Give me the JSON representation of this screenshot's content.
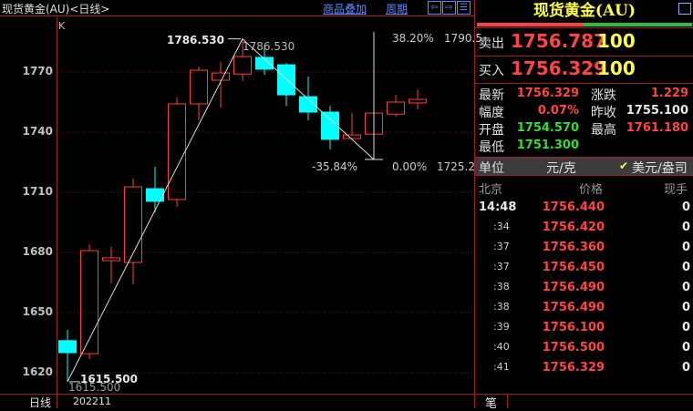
{
  "header": {
    "title": "现货黄金(AU)<日线>",
    "overlay_link": "商品叠加",
    "period_link": "周期",
    "nav_icons": [
      "arrow-left-icon",
      "arrow-right-icon",
      "layout-icon"
    ]
  },
  "chart": {
    "indicator_label": "K",
    "y_ticks": [
      1770,
      1740,
      1710,
      1680,
      1650,
      1620
    ],
    "period_label": "日线",
    "date_label": "202211",
    "high_label": "1786.530",
    "high_label2": "1786.530",
    "low_label": "1615.500",
    "low_label2": "1615.500",
    "fib": {
      "top_pct": "38.20%",
      "top_price": "1790.5",
      "zero_pct": "0.00%",
      "zero_price": "1725.2",
      "neg_pct": "-35.84%"
    },
    "colors": {
      "up": "#ff3c3c",
      "down": "#00ffff",
      "grid": "#6a1010"
    }
  },
  "chart_data": {
    "type": "candlestick",
    "ylim": [
      1612,
      1796
    ],
    "candles": [
      {
        "o": 1636,
        "c": 1630,
        "h": 1641.4,
        "l": 1615.5
      },
      {
        "o": 1629.5,
        "c": 1680.9,
        "h": 1684,
        "l": 1626.8
      },
      {
        "o": 1675.9,
        "c": 1677.3,
        "h": 1682.7,
        "l": 1664.5
      },
      {
        "o": 1675,
        "c": 1712.7,
        "h": 1717,
        "l": 1664
      },
      {
        "o": 1711.8,
        "c": 1705.5,
        "h": 1722.7,
        "l": 1700
      },
      {
        "o": 1706.4,
        "c": 1754.1,
        "h": 1757.3,
        "l": 1702.7
      },
      {
        "o": 1754.1,
        "c": 1770.9,
        "h": 1772.7,
        "l": 1745.9
      },
      {
        "o": 1765.9,
        "c": 1769.5,
        "h": 1775,
        "l": 1752.3
      },
      {
        "o": 1769,
        "c": 1777.7,
        "h": 1786.53,
        "l": 1765.5
      },
      {
        "o": 1777.3,
        "c": 1771.4,
        "h": 1783,
        "l": 1768.6
      },
      {
        "o": 1773.6,
        "c": 1758.6,
        "h": 1774.5,
        "l": 1753
      },
      {
        "o": 1757.7,
        "c": 1750,
        "h": 1767.7,
        "l": 1745.9
      },
      {
        "o": 1750,
        "c": 1736.4,
        "h": 1753,
        "l": 1731.4
      },
      {
        "o": 1736.8,
        "c": 1738.6,
        "h": 1749.5,
        "l": 1736.8
      },
      {
        "o": 1739,
        "c": 1749.5,
        "h": 1750,
        "l": 1738.5
      },
      {
        "o": 1749,
        "c": 1755,
        "h": 1758.6,
        "l": 1747.7
      },
      {
        "o": 1754.57,
        "c": 1756.329,
        "h": 1761.18,
        "l": 1751.3
      }
    ]
  },
  "panel": {
    "title": "现货黄金(AU)",
    "sell_label": "卖出",
    "sell_price": "1756.787",
    "sell_vol": "100",
    "buy_label": "买入",
    "buy_price": "1756.329",
    "buy_vol": "100",
    "stats": [
      {
        "label": "最新",
        "value": "1756.329",
        "color": "red"
      },
      {
        "label": "涨跌",
        "value": "1.229",
        "color": "red"
      },
      {
        "label": "幅度",
        "value": "0.07%",
        "color": "red"
      },
      {
        "label": "昨收",
        "value": "1755.100",
        "color": "white"
      },
      {
        "label": "开盘",
        "value": "1754.570",
        "color": "green"
      },
      {
        "label": "最高",
        "value": "1761.180",
        "color": "red"
      },
      {
        "label": "最低",
        "value": "1751.300",
        "color": "green"
      }
    ],
    "unit_label": "单位",
    "unit_yuan": "元/克",
    "unit_usd": "美元/盎司",
    "ticks_header": {
      "time": "北京",
      "price": "价格",
      "vol": "现手"
    },
    "ticks": [
      {
        "time": "14:48",
        "price": "1756.440",
        "vol": "0"
      },
      {
        "time": ":34",
        "price": "1756.420",
        "vol": "0"
      },
      {
        "time": ":37",
        "price": "1756.360",
        "vol": "0"
      },
      {
        "time": ":37",
        "price": "1756.450",
        "vol": "0"
      },
      {
        "time": ":38",
        "price": "1756.490",
        "vol": "0"
      },
      {
        "time": ":38",
        "price": "1756.490",
        "vol": "0"
      },
      {
        "time": ":39",
        "price": "1756.100",
        "vol": "0"
      },
      {
        "time": ":40",
        "price": "1756.500",
        "vol": "0"
      },
      {
        "time": ":41",
        "price": "1756.329",
        "vol": "0"
      }
    ],
    "tab_label": "笔"
  }
}
